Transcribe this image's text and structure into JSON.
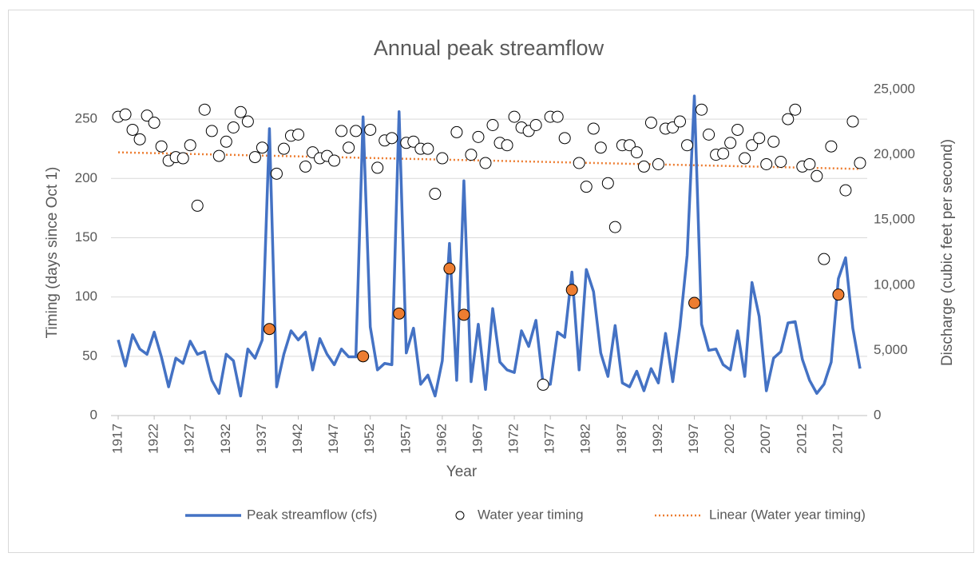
{
  "chart_data": {
    "type": "combo",
    "title": "Annual peak streamflow",
    "x_label": "Year",
    "y_label": "Timing (days since Oct 1)",
    "y2_label": "Discharge (cubic feet per second)",
    "x": [
      1917,
      1918,
      1919,
      1920,
      1921,
      1922,
      1923,
      1924,
      1925,
      1926,
      1927,
      1928,
      1929,
      1930,
      1931,
      1932,
      1933,
      1934,
      1935,
      1936,
      1937,
      1938,
      1939,
      1940,
      1941,
      1942,
      1943,
      1944,
      1945,
      1946,
      1947,
      1948,
      1949,
      1950,
      1951,
      1952,
      1953,
      1954,
      1955,
      1956,
      1957,
      1958,
      1959,
      1960,
      1961,
      1962,
      1963,
      1964,
      1965,
      1966,
      1967,
      1968,
      1969,
      1970,
      1971,
      1972,
      1973,
      1974,
      1975,
      1976,
      1977,
      1978,
      1979,
      1980,
      1981,
      1982,
      1983,
      1984,
      1985,
      1986,
      1987,
      1988,
      1989,
      1990,
      1991,
      1992,
      1993,
      1994,
      1995,
      1996,
      1997,
      1998,
      1999,
      2000,
      2001,
      2002,
      2003,
      2004,
      2005,
      2006,
      2007,
      2008,
      2009,
      2010,
      2011,
      2012,
      2013,
      2014,
      2015,
      2016,
      2017,
      2018,
      2019,
      2020
    ],
    "xlim": [
      1916,
      2021
    ],
    "xticks": [
      1917,
      1922,
      1927,
      1932,
      1937,
      1942,
      1947,
      1952,
      1957,
      1962,
      1967,
      1972,
      1977,
      1982,
      1987,
      1992,
      1997,
      2002,
      2007,
      2012,
      2017
    ],
    "ylim": [
      0,
      275
    ],
    "yticks": [
      0,
      50,
      100,
      150,
      200,
      250
    ],
    "y2lim": [
      0,
      25000
    ],
    "y2ticks": [
      0,
      {
        "value": 5000,
        "label": "5,000"
      },
      {
        "value": 10000,
        "label": "10,000"
      },
      {
        "value": 15000,
        "label": "15,000"
      },
      {
        "value": 20000,
        "label": "20,000"
      },
      {
        "value": 25000,
        "label": "25,000"
      }
    ],
    "grid": true,
    "legend": "bottom",
    "series": [
      {
        "name": "Peak streamflow (cfs)",
        "type": "line",
        "axis": "y2",
        "color": "#4472c4",
        "values": [
          5800,
          3800,
          6200,
          5100,
          4700,
          6400,
          4500,
          2200,
          4400,
          4000,
          5700,
          4700,
          4900,
          2700,
          1700,
          4700,
          4200,
          1500,
          5100,
          4400,
          5800,
          22000,
          2200,
          4700,
          6500,
          5800,
          6400,
          3500,
          5900,
          4700,
          3900,
          5100,
          4500,
          4500,
          22900,
          6800,
          3500,
          4000,
          3900,
          23300,
          4800,
          6700,
          2400,
          3100,
          1500,
          4200,
          13200,
          2700,
          18000,
          2600,
          7000,
          2000,
          8200,
          4100,
          3500,
          3300,
          6500,
          5300,
          7300,
          2400,
          2400,
          6400,
          6000,
          11000,
          3500,
          11200,
          9500,
          4800,
          3000,
          6900,
          2500,
          2200,
          3400,
          1900,
          3600,
          2500,
          6300,
          2600,
          6800,
          12300,
          24500,
          7000,
          5000,
          5100,
          3900,
          3500,
          6500,
          3000,
          10200,
          7600,
          1900,
          4400,
          4900,
          7100,
          7200,
          4300,
          2700,
          1700,
          2400,
          4100,
          10500,
          12100,
          6700,
          3600
        ]
      },
      {
        "name": "Water year timing",
        "type": "scatter",
        "color": "#000000",
        "values": [
          252,
          254,
          241,
          233,
          253,
          247,
          227,
          215,
          218,
          217,
          228,
          177,
          258,
          240,
          219,
          231,
          243,
          256,
          248,
          218,
          226,
          73,
          204,
          225,
          236,
          237,
          210,
          222,
          217,
          219,
          215,
          240,
          226,
          240,
          50,
          241,
          209,
          232,
          234,
          86,
          230,
          231,
          225,
          225,
          187,
          217,
          124,
          239,
          85,
          220,
          235,
          213,
          245,
          230,
          228,
          252,
          243,
          240,
          245,
          26,
          252,
          252,
          234,
          106,
          213,
          193,
          242,
          226,
          196,
          159,
          228,
          228,
          222,
          210,
          247,
          212,
          242,
          243,
          248,
          228,
          95,
          258,
          237,
          220,
          221,
          230,
          241,
          217,
          228,
          234,
          212,
          231,
          214,
          250,
          258,
          210,
          212,
          202,
          132,
          227,
          102,
          190,
          248,
          213
        ],
        "point_colors": [
          "#ffffff",
          "#ffffff",
          "#ffffff",
          "#ffffff",
          "#ffffff",
          "#ffffff",
          "#ffffff",
          "#ffffff",
          "#ffffff",
          "#ffffff",
          "#ffffff",
          "#ffffff",
          "#ffffff",
          "#ffffff",
          "#ffffff",
          "#ffffff",
          "#ffffff",
          "#ffffff",
          "#ffffff",
          "#ffffff",
          "#ffffff",
          "#ed7d31",
          "#ffffff",
          "#ffffff",
          "#ffffff",
          "#ffffff",
          "#ffffff",
          "#ffffff",
          "#ffffff",
          "#ffffff",
          "#ffffff",
          "#ffffff",
          "#ffffff",
          "#ffffff",
          "#ed7d31",
          "#ffffff",
          "#ffffff",
          "#ffffff",
          "#ffffff",
          "#ed7d31",
          "#ffffff",
          "#ffffff",
          "#ffffff",
          "#ffffff",
          "#ffffff",
          "#ffffff",
          "#ed7d31",
          "#ffffff",
          "#ed7d31",
          "#ffffff",
          "#ffffff",
          "#ffffff",
          "#ffffff",
          "#ffffff",
          "#ffffff",
          "#ffffff",
          "#ffffff",
          "#ffffff",
          "#ffffff",
          "#ffffff",
          "#ffffff",
          "#ffffff",
          "#ffffff",
          "#ed7d31",
          "#ffffff",
          "#ffffff",
          "#ffffff",
          "#ffffff",
          "#ffffff",
          "#ffffff",
          "#ffffff",
          "#ffffff",
          "#ffffff",
          "#ffffff",
          "#ffffff",
          "#ffffff",
          "#ffffff",
          "#ffffff",
          "#ffffff",
          "#ffffff",
          "#ed7d31",
          "#ffffff",
          "#ffffff",
          "#ffffff",
          "#ffffff",
          "#ffffff",
          "#ffffff",
          "#ffffff",
          "#ffffff",
          "#ffffff",
          "#ffffff",
          "#ffffff",
          "#ffffff",
          "#ffffff",
          "#ffffff",
          "#ffffff",
          "#ffffff",
          "#ffffff",
          "#ffffff",
          "#ffffff",
          "#ed7d31",
          "#ffffff",
          "#ffffff",
          "#ffffff"
        ]
      },
      {
        "name": "Linear (Water year timing)",
        "type": "trend",
        "color": "#ed7d31",
        "x": [
          1917,
          2020
        ],
        "values": [
          222,
          208
        ]
      }
    ]
  }
}
